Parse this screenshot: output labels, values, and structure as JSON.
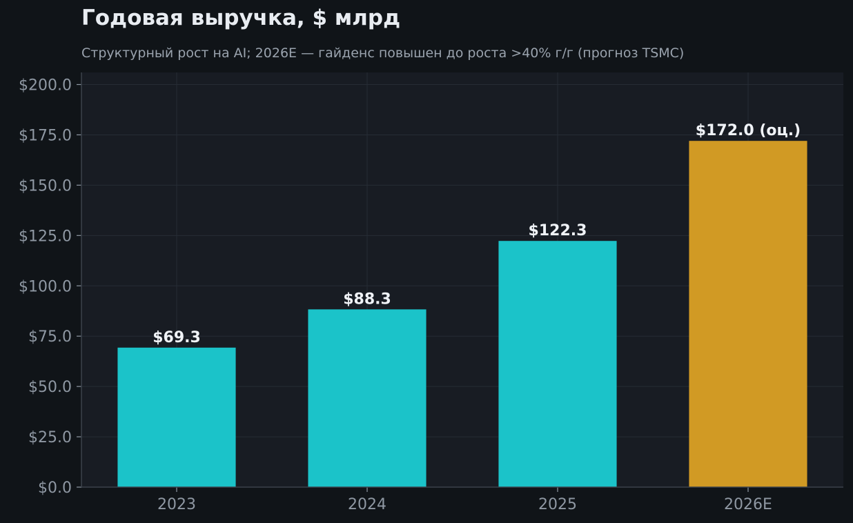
{
  "chart_data": {
    "type": "bar",
    "title": "Годовая выручка, $ млрд",
    "subtitle": "Структурный рост на AI; 2026E — гайденс повышен до роста >40% г/г (прогноз TSMC)",
    "categories": [
      "2023",
      "2024",
      "2025",
      "2026E"
    ],
    "values": [
      69.3,
      88.3,
      122.3,
      172.0
    ],
    "data_labels": [
      "$69.3",
      "$88.3",
      "$122.3",
      "$172.0 (оц.)"
    ],
    "bar_colors": [
      "#1bc3c9",
      "#1bc3c9",
      "#1bc3c9",
      "#d19a24"
    ],
    "ylim": [
      0,
      206
    ],
    "y_ticks": [
      0,
      25,
      50,
      75,
      100,
      125,
      150,
      175,
      200
    ],
    "y_tick_labels": [
      "$0.0",
      "$25.0",
      "$50.0",
      "$75.0",
      "$100.0",
      "$125.0",
      "$150.0",
      "$175.0",
      "$200.0"
    ],
    "xlabel": "",
    "ylabel": "",
    "grid": true,
    "colors": {
      "background": "#101418",
      "plot_background": "#181c23",
      "grid": "#262c35",
      "axis": "#3a414b",
      "tick_text": "#8f98a3"
    }
  }
}
